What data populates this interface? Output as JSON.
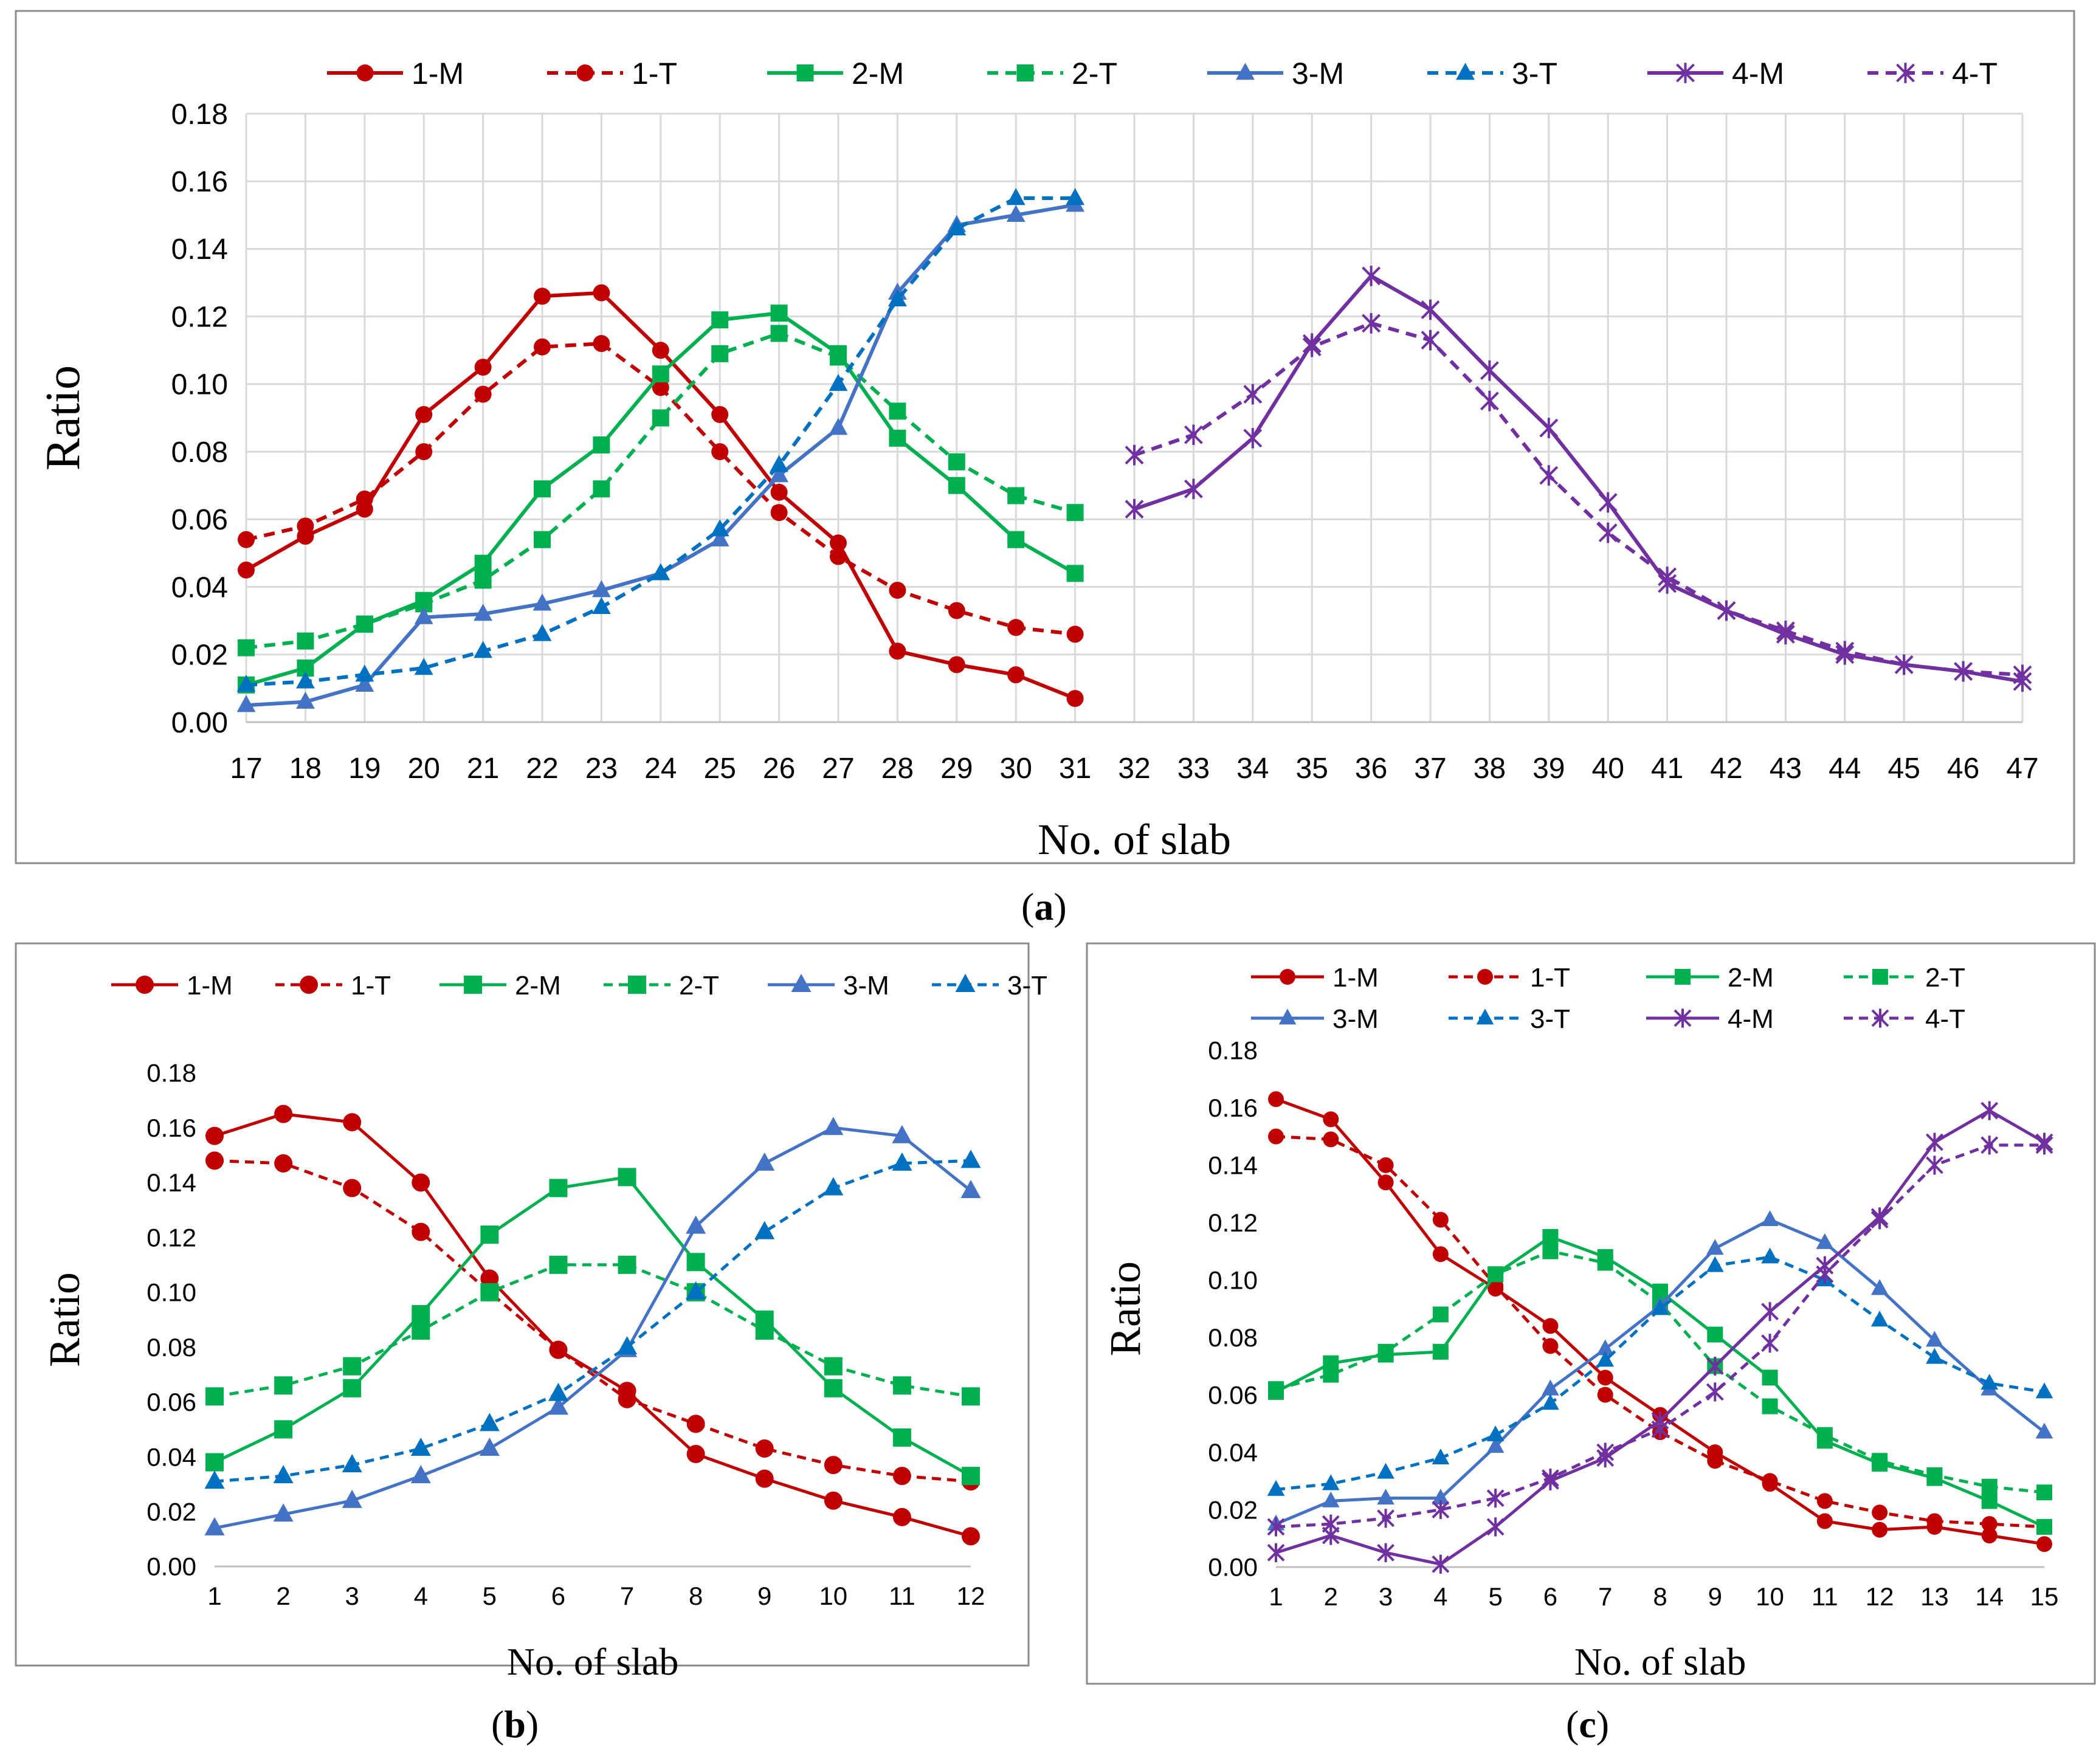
{
  "panels": [
    {
      "label": "a",
      "chart_data": {
        "type": "line",
        "title": "",
        "xlabel": "No. of slab",
        "ylabel": "Ratio",
        "x": [
          17,
          18,
          19,
          20,
          21,
          22,
          23,
          24,
          25,
          26,
          27,
          28,
          29,
          30,
          31,
          32,
          33,
          34,
          35,
          36,
          37,
          38,
          39,
          40,
          41,
          42,
          43,
          44,
          45,
          46,
          47
        ],
        "ylim": [
          0,
          0.18
        ],
        "yticks": [
          "0.00",
          "0.02",
          "0.04",
          "0.06",
          "0.08",
          "0.10",
          "0.12",
          "0.14",
          "0.16",
          "0.18"
        ],
        "grid": true,
        "legend_position": "top",
        "series": [
          {
            "name": "1-M",
            "color": "#c00000",
            "dash": false,
            "marker": "circle",
            "x": [
              17,
              18,
              19,
              20,
              21,
              22,
              23,
              24,
              25,
              26,
              27,
              28,
              29,
              30,
              31
            ],
            "values": [
              0.045,
              0.055,
              0.063,
              0.091,
              0.105,
              0.126,
              0.127,
              0.11,
              0.091,
              0.068,
              0.053,
              0.021,
              0.017,
              0.014,
              0.007
            ]
          },
          {
            "name": "1-T",
            "color": "#c00000",
            "dash": true,
            "marker": "circle",
            "x": [
              17,
              18,
              19,
              20,
              21,
              22,
              23,
              24,
              25,
              26,
              27,
              28,
              29,
              30,
              31
            ],
            "values": [
              0.054,
              0.058,
              0.066,
              0.08,
              0.097,
              0.111,
              0.112,
              0.099,
              0.08,
              0.062,
              0.049,
              0.039,
              0.033,
              0.028,
              0.026
            ]
          },
          {
            "name": "2-M",
            "color": "#00b050",
            "dash": false,
            "marker": "square",
            "x": [
              17,
              18,
              19,
              20,
              21,
              22,
              23,
              24,
              25,
              26,
              27,
              28,
              29,
              30,
              31
            ],
            "values": [
              0.011,
              0.016,
              0.029,
              0.036,
              0.047,
              0.069,
              0.082,
              0.103,
              0.119,
              0.121,
              0.109,
              0.084,
              0.07,
              0.054,
              0.044
            ]
          },
          {
            "name": "2-T",
            "color": "#00b050",
            "dash": true,
            "marker": "square",
            "x": [
              17,
              18,
              19,
              20,
              21,
              22,
              23,
              24,
              25,
              26,
              27,
              28,
              29,
              30,
              31
            ],
            "values": [
              0.022,
              0.024,
              0.029,
              0.035,
              0.042,
              0.054,
              0.069,
              0.09,
              0.109,
              0.115,
              0.108,
              0.092,
              0.077,
              0.067,
              0.062
            ]
          },
          {
            "name": "3-M",
            "color": "#4472c4",
            "dash": false,
            "marker": "triangle",
            "x": [
              17,
              18,
              19,
              20,
              21,
              22,
              23,
              24,
              25,
              26,
              27,
              28,
              29,
              30,
              31
            ],
            "values": [
              0.005,
              0.006,
              0.011,
              0.031,
              0.032,
              0.035,
              0.039,
              0.044,
              0.054,
              0.073,
              0.087,
              0.127,
              0.147,
              0.15,
              0.153
            ]
          },
          {
            "name": "3-T",
            "color": "#0070c0",
            "dash": true,
            "marker": "triangle",
            "x": [
              17,
              18,
              19,
              20,
              21,
              22,
              23,
              24,
              25,
              26,
              27,
              28,
              29,
              30,
              31
            ],
            "values": [
              0.011,
              0.012,
              0.014,
              0.016,
              0.021,
              0.026,
              0.034,
              0.044,
              0.057,
              0.076,
              0.1,
              0.125,
              0.146,
              0.155,
              0.155
            ]
          },
          {
            "name": "4-M",
            "color": "#7030a0",
            "dash": false,
            "marker": "star",
            "x": [
              32,
              33,
              34,
              35,
              36,
              37,
              38,
              39,
              40,
              41,
              42,
              43,
              44,
              45,
              46,
              47
            ],
            "values": [
              0.063,
              0.069,
              0.084,
              0.112,
              0.132,
              0.122,
              0.104,
              0.087,
              0.065,
              0.041,
              0.033,
              0.026,
              0.02,
              0.017,
              0.015,
              0.012
            ]
          },
          {
            "name": "4-T",
            "color": "#7030a0",
            "dash": true,
            "marker": "star",
            "x": [
              32,
              33,
              34,
              35,
              36,
              37,
              38,
              39,
              40,
              41,
              42,
              43,
              44,
              45,
              46,
              47
            ],
            "values": [
              0.079,
              0.085,
              0.097,
              0.111,
              0.118,
              0.113,
              0.095,
              0.073,
              0.056,
              0.043,
              0.033,
              0.027,
              0.021,
              0.017,
              0.015,
              0.014
            ]
          }
        ]
      }
    },
    {
      "label": "b",
      "chart_data": {
        "type": "line",
        "title": "",
        "xlabel": "No. of slab",
        "ylabel": "Ratio",
        "x": [
          1,
          2,
          3,
          4,
          5,
          6,
          7,
          8,
          9,
          10,
          11,
          12
        ],
        "ylim": [
          0,
          0.18
        ],
        "yticks": [
          "0.00",
          "0.02",
          "0.04",
          "0.06",
          "0.08",
          "0.10",
          "0.12",
          "0.14",
          "0.16",
          "0.18"
        ],
        "grid": false,
        "legend_position": "top",
        "series": [
          {
            "name": "1-M",
            "color": "#c00000",
            "dash": false,
            "marker": "circle",
            "values": [
              0.157,
              0.165,
              0.162,
              0.14,
              0.105,
              0.079,
              0.064,
              0.041,
              0.032,
              0.024,
              0.018,
              0.011
            ]
          },
          {
            "name": "1-T",
            "color": "#c00000",
            "dash": true,
            "marker": "circle",
            "values": [
              0.148,
              0.147,
              0.138,
              0.122,
              0.1,
              0.079,
              0.061,
              0.052,
              0.043,
              0.037,
              0.033,
              0.031
            ]
          },
          {
            "name": "2-M",
            "color": "#00b050",
            "dash": false,
            "marker": "square",
            "values": [
              0.038,
              0.05,
              0.065,
              0.092,
              0.121,
              0.138,
              0.142,
              0.111,
              0.09,
              0.065,
              0.047,
              0.033
            ]
          },
          {
            "name": "2-T",
            "color": "#00b050",
            "dash": true,
            "marker": "square",
            "values": [
              0.062,
              0.066,
              0.073,
              0.086,
              0.1,
              0.11,
              0.11,
              0.1,
              0.086,
              0.073,
              0.066,
              0.062
            ]
          },
          {
            "name": "3-M",
            "color": "#4472c4",
            "dash": false,
            "marker": "triangle",
            "values": [
              0.014,
              0.019,
              0.024,
              0.033,
              0.043,
              0.058,
              0.079,
              0.124,
              0.147,
              0.16,
              0.157,
              0.137
            ]
          },
          {
            "name": "3-T",
            "color": "#0070c0",
            "dash": true,
            "marker": "triangle",
            "values": [
              0.031,
              0.033,
              0.037,
              0.043,
              0.052,
              0.063,
              0.08,
              0.1,
              0.122,
              0.138,
              0.147,
              0.148
            ]
          }
        ]
      }
    },
    {
      "label": "c",
      "chart_data": {
        "type": "line",
        "title": "",
        "xlabel": "No. of slab",
        "ylabel": "Ratio",
        "x": [
          1,
          2,
          3,
          4,
          5,
          6,
          7,
          8,
          9,
          10,
          11,
          12,
          13,
          14,
          15
        ],
        "ylim": [
          0,
          0.18
        ],
        "yticks": [
          "0.00",
          "0.02",
          "0.04",
          "0.06",
          "0.08",
          "0.10",
          "0.12",
          "0.14",
          "0.16",
          "0.18"
        ],
        "grid": false,
        "legend_position": "top",
        "series": [
          {
            "name": "1-M",
            "color": "#c00000",
            "dash": false,
            "marker": "circle",
            "values": [
              0.163,
              0.156,
              0.134,
              0.109,
              0.097,
              0.084,
              0.066,
              0.053,
              0.04,
              0.029,
              0.016,
              0.013,
              0.014,
              0.011,
              0.008
            ]
          },
          {
            "name": "1-T",
            "color": "#c00000",
            "dash": true,
            "marker": "circle",
            "values": [
              0.15,
              0.149,
              0.14,
              0.121,
              0.098,
              0.077,
              0.06,
              0.047,
              0.037,
              0.03,
              0.023,
              0.019,
              0.016,
              0.015,
              0.014
            ]
          },
          {
            "name": "2-M",
            "color": "#00b050",
            "dash": false,
            "marker": "square",
            "values": [
              0.061,
              0.071,
              0.074,
              0.075,
              0.102,
              0.115,
              0.108,
              0.096,
              0.081,
              0.066,
              0.044,
              0.036,
              0.031,
              0.023,
              0.014
            ]
          },
          {
            "name": "2-T",
            "color": "#00b050",
            "dash": true,
            "marker": "square",
            "values": [
              0.062,
              0.067,
              0.075,
              0.088,
              0.102,
              0.11,
              0.106,
              0.092,
              0.07,
              0.056,
              0.046,
              0.037,
              0.032,
              0.028,
              0.026
            ]
          },
          {
            "name": "3-M",
            "color": "#4472c4",
            "dash": false,
            "marker": "triangle",
            "values": [
              0.015,
              0.023,
              0.024,
              0.024,
              0.042,
              0.062,
              0.076,
              0.091,
              0.111,
              0.121,
              0.113,
              0.097,
              0.079,
              0.062,
              0.047
            ]
          },
          {
            "name": "3-T",
            "color": "#0070c0",
            "dash": true,
            "marker": "triangle",
            "values": [
              0.027,
              0.029,
              0.033,
              0.038,
              0.046,
              0.057,
              0.072,
              0.09,
              0.105,
              0.108,
              0.1,
              0.086,
              0.073,
              0.064,
              0.061
            ]
          },
          {
            "name": "4-M",
            "color": "#7030a0",
            "dash": false,
            "marker": "star",
            "values": [
              0.005,
              0.011,
              0.005,
              0.001,
              0.014,
              0.03,
              0.038,
              0.051,
              0.07,
              0.089,
              0.105,
              0.122,
              0.148,
              0.159,
              0.148
            ]
          },
          {
            "name": "4-T",
            "color": "#7030a0",
            "dash": true,
            "marker": "star",
            "values": [
              0.014,
              0.015,
              0.017,
              0.02,
              0.024,
              0.031,
              0.04,
              0.048,
              0.061,
              0.078,
              0.102,
              0.121,
              0.14,
              0.147,
              0.147
            ]
          }
        ]
      }
    }
  ]
}
